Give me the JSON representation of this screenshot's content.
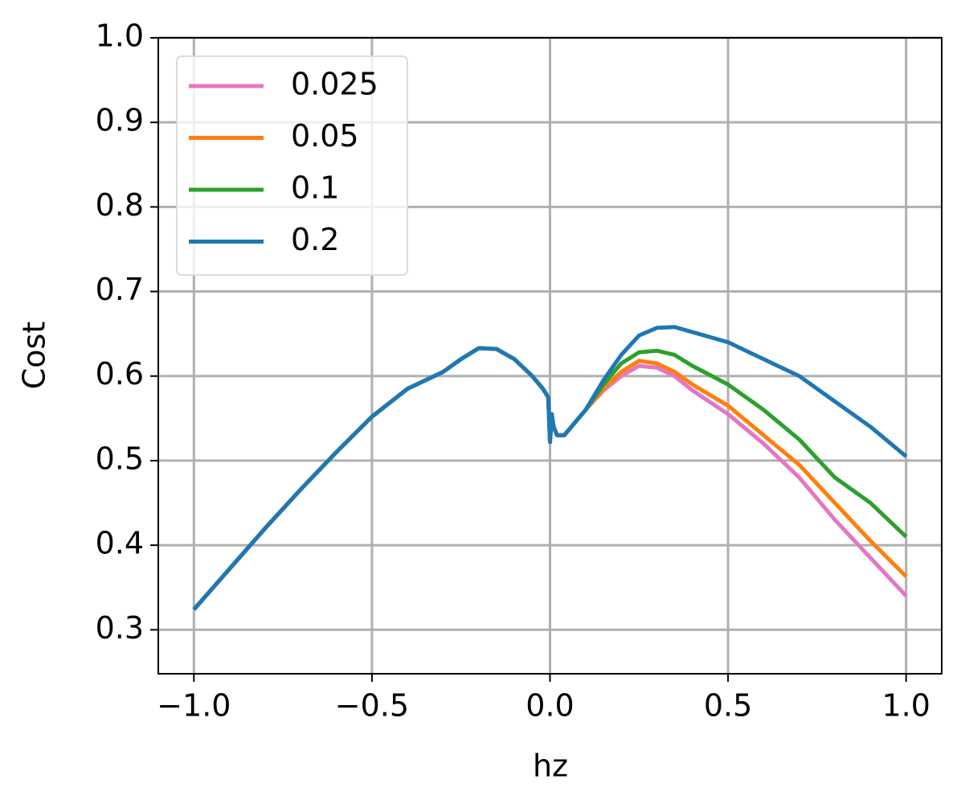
{
  "chart_data": {
    "type": "line",
    "xlabel": "hz",
    "ylabel": "Cost",
    "x": [
      -1.0,
      -0.9,
      -0.8,
      -0.7,
      -0.6,
      -0.5,
      -0.4,
      -0.3,
      -0.25,
      -0.2,
      -0.15,
      -0.1,
      -0.05,
      -0.02,
      -0.005,
      0.0,
      0.005,
      0.01,
      0.02,
      0.04,
      0.1,
      0.15,
      0.2,
      0.25,
      0.3,
      0.35,
      0.4,
      0.5,
      0.6,
      0.7,
      0.8,
      0.9,
      1.0
    ],
    "series": [
      {
        "name": "0.025",
        "color": "#e377c2",
        "values": [
          0.324,
          0.372,
          0.42,
          0.466,
          0.51,
          0.552,
          0.585,
          0.605,
          0.62,
          0.633,
          0.632,
          0.62,
          0.6,
          0.585,
          0.575,
          0.522,
          0.555,
          0.54,
          0.53,
          0.53,
          0.56,
          0.583,
          0.6,
          0.612,
          0.61,
          0.6,
          0.583,
          0.555,
          0.52,
          0.48,
          0.43,
          0.385,
          0.34
        ]
      },
      {
        "name": "0.05",
        "color": "#ff7f0e",
        "values": [
          0.324,
          0.372,
          0.42,
          0.466,
          0.51,
          0.552,
          0.585,
          0.605,
          0.62,
          0.633,
          0.632,
          0.62,
          0.6,
          0.585,
          0.575,
          0.522,
          0.555,
          0.54,
          0.53,
          0.53,
          0.56,
          0.585,
          0.605,
          0.618,
          0.615,
          0.605,
          0.59,
          0.565,
          0.53,
          0.495,
          0.45,
          0.405,
          0.363
        ]
      },
      {
        "name": "0.1",
        "color": "#2ca02c",
        "values": [
          0.324,
          0.372,
          0.42,
          0.466,
          0.51,
          0.552,
          0.585,
          0.605,
          0.62,
          0.633,
          0.632,
          0.62,
          0.6,
          0.585,
          0.575,
          0.522,
          0.555,
          0.54,
          0.53,
          0.53,
          0.56,
          0.59,
          0.615,
          0.628,
          0.63,
          0.625,
          0.612,
          0.59,
          0.56,
          0.525,
          0.48,
          0.45,
          0.41
        ]
      },
      {
        "name": "0.2",
        "color": "#1f77b4",
        "values": [
          0.324,
          0.372,
          0.42,
          0.466,
          0.51,
          0.552,
          0.585,
          0.605,
          0.62,
          0.633,
          0.632,
          0.62,
          0.6,
          0.585,
          0.575,
          0.522,
          0.555,
          0.54,
          0.53,
          0.53,
          0.56,
          0.595,
          0.625,
          0.648,
          0.657,
          0.658,
          0.652,
          0.64,
          0.62,
          0.6,
          0.57,
          0.54,
          0.505
        ]
      }
    ],
    "xlim": [
      -1.1,
      1.1
    ],
    "ylim": [
      0.248,
      1.0
    ],
    "xticks": [
      {
        "value": -1.0,
        "label": "−1.0"
      },
      {
        "value": -0.5,
        "label": "−0.5"
      },
      {
        "value": 0.0,
        "label": "0.0"
      },
      {
        "value": 0.5,
        "label": "0.5"
      },
      {
        "value": 1.0,
        "label": "1.0"
      }
    ],
    "yticks": [
      0.3,
      0.4,
      0.5,
      0.6,
      0.7,
      0.8,
      0.9,
      {
        "value": 1.0,
        "label": "1.0"
      }
    ],
    "grid": true,
    "legend": "upper-left"
  }
}
